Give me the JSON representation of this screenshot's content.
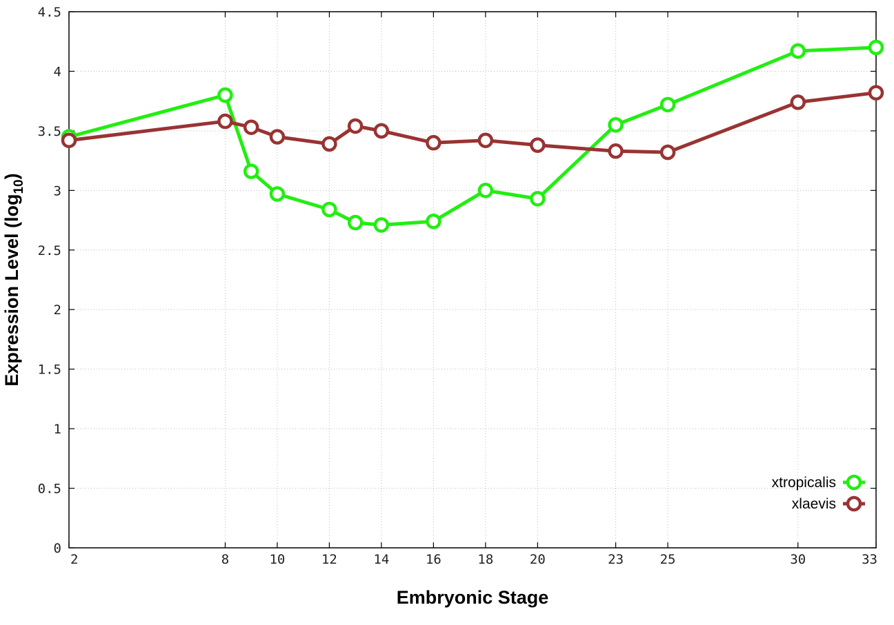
{
  "chart_data": {
    "type": "line",
    "title": "",
    "xlabel": "Embryonic Stage",
    "ylabel_main": "Expression Level (log",
    "ylabel_sub": "10",
    "ylabel_close": ")",
    "x_scale": "linear",
    "xlim": [
      2,
      33
    ],
    "ylim": [
      0,
      4.5
    ],
    "x_ticks": [
      2,
      8,
      10,
      12,
      14,
      16,
      18,
      20,
      23,
      25,
      30,
      33
    ],
    "x_tick_labels": [
      "2",
      "8",
      "10",
      "12",
      "14",
      "16",
      "18",
      "20",
      "23",
      "25",
      "30",
      "33"
    ],
    "y_ticks": [
      0,
      0.5,
      1,
      1.5,
      2,
      2.5,
      3,
      3.5,
      4,
      4.5
    ],
    "y_tick_labels": [
      "0",
      "0.5",
      "1",
      "1.5",
      "2",
      "2.5",
      "3",
      "3.5",
      "4",
      "4.5"
    ],
    "grid": true,
    "legend_position": "bottom-right",
    "x": [
      2,
      8,
      9,
      10,
      12,
      13,
      14,
      16,
      18,
      20,
      23,
      25,
      30,
      33
    ],
    "series": [
      {
        "name": "xtropicalis",
        "color": "#22ee11",
        "values": [
          3.45,
          3.8,
          3.16,
          2.97,
          2.84,
          2.73,
          2.71,
          2.74,
          3.0,
          2.93,
          3.55,
          3.72,
          4.17,
          4.2
        ]
      },
      {
        "name": "xlaevis",
        "color": "#993333",
        "values": [
          3.42,
          3.58,
          3.53,
          3.45,
          3.39,
          3.54,
          3.5,
          3.4,
          3.42,
          3.38,
          3.33,
          3.32,
          3.74,
          3.82
        ]
      }
    ]
  }
}
